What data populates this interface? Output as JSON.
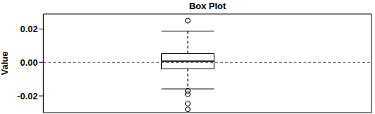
{
  "chart_data": {
    "type": "box",
    "title": "Box Plot",
    "y_label": "Value",
    "ylim": [
      -0.03,
      0.029
    ],
    "yticks": [
      {
        "value": -0.02,
        "label": "-0.02"
      },
      {
        "value": 0,
        "label": "0.00"
      },
      {
        "value": 0.02,
        "label": "0.02"
      }
    ],
    "tick_labels": "y",
    "reference_lines": [
      0
    ],
    "boxes": [
      {
        "whisker_low": -0.0158,
        "q1": -0.0038,
        "median": 0.0008,
        "q3": 0.0054,
        "whisker_high": 0.0188,
        "outliers": [
          0.025,
          -0.017,
          -0.019,
          -0.0246,
          -0.028
        ]
      }
    ]
  }
}
